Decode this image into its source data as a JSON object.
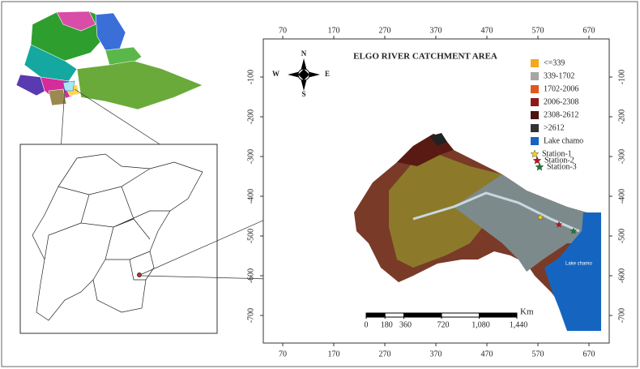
{
  "map": {
    "title": "ELGO RIVER CATCHMENT AREA",
    "x_ticks": [
      70,
      170,
      270,
      370,
      470,
      570,
      670
    ],
    "y_ticks": [
      -100,
      -200,
      -300,
      -400,
      -500,
      -600,
      -700
    ],
    "compass": {
      "n": "N",
      "s": "S",
      "e": "E",
      "w": "W"
    },
    "legend": [
      {
        "label": "<=339",
        "color": "#f5a623",
        "symbol": "square"
      },
      {
        "label": "339-1702",
        "color": "#a6a6a6",
        "symbol": "square"
      },
      {
        "label": "1702-2006",
        "color": "#e2571c",
        "symbol": "square"
      },
      {
        "label": "2006-2308",
        "color": "#8b1a1a",
        "symbol": "square"
      },
      {
        "label": "2308-2612",
        "color": "#4a1410",
        "symbol": "square"
      },
      {
        "label": ">2612",
        "color": "#333333",
        "symbol": "square"
      },
      {
        "label": "Lake chamo",
        "color": "#1565c0",
        "symbol": "square"
      },
      {
        "label": "Station-1",
        "color": "#f2d21a",
        "symbol": "star"
      },
      {
        "label": "Station-2",
        "color": "#c0141c",
        "symbol": "star"
      },
      {
        "label": "Station-3",
        "color": "#1e7a3a",
        "symbol": "star"
      }
    ],
    "scale_bar": {
      "unit": "Km",
      "ticks": [
        0,
        180,
        360,
        720,
        {
          "value": 1080,
          "label": "1,080"
        },
        {
          "value": 1440,
          "label": "1,440"
        }
      ]
    },
    "lake_label": "Lake chamo"
  }
}
